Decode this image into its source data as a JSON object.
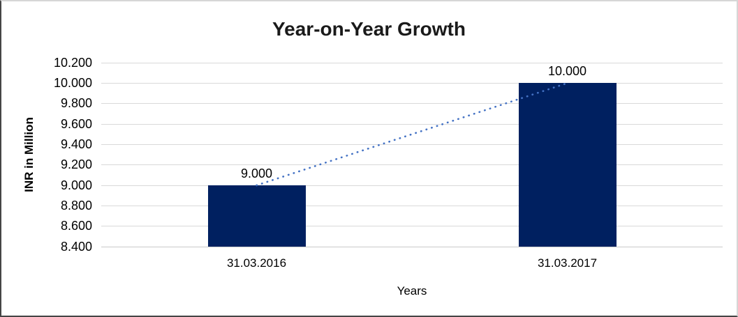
{
  "chart_data": {
    "type": "bar",
    "title": "Year-on-Year Growth",
    "xlabel": "Years",
    "ylabel": "INR in Million",
    "categories": [
      "31.03.2016",
      "31.03.2017"
    ],
    "values": [
      9000,
      10000
    ],
    "bar_value_labels": [
      "9.000",
      "10.000"
    ],
    "y_ticks": [
      {
        "value": 10200,
        "label": "10.200"
      },
      {
        "value": 10000,
        "label": "10.000"
      },
      {
        "value": 9800,
        "label": "9.800"
      },
      {
        "value": 9600,
        "label": "9.600"
      },
      {
        "value": 9400,
        "label": "9.400"
      },
      {
        "value": 9200,
        "label": "9.200"
      },
      {
        "value": 9000,
        "label": "9.000"
      },
      {
        "value": 8800,
        "label": "8.800"
      },
      {
        "value": 8600,
        "label": "8.600"
      },
      {
        "value": 8400,
        "label": "8.400"
      }
    ],
    "ylim": [
      8400,
      10200
    ],
    "grid": "horizontal",
    "legend": "none",
    "colors": {
      "bar": "#002060",
      "trendline": "#4472C4",
      "gridline": "#D9D9D9",
      "text": "#000000"
    },
    "trendline": {
      "style": "dotted",
      "from_value": 9000,
      "to_value": 10000
    }
  }
}
